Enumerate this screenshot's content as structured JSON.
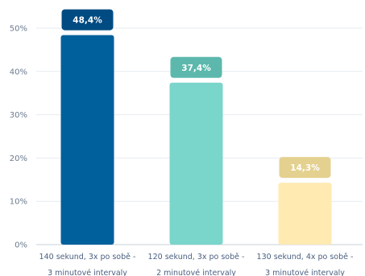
{
  "chart_data": {
    "type": "bar",
    "categories": [
      [
        "140 sekund, 3x po sobě -",
        "3 minutové intervaly"
      ],
      [
        "120 sekund, 3x po sobě -",
        "2 minutové intervaly"
      ],
      [
        "130 sekund, 4x po sobě -",
        "3 minutové intervaly"
      ]
    ],
    "values": [
      48.4,
      37.4,
      14.3
    ],
    "data_labels": [
      "48,4%",
      "37,4%",
      "14,3%"
    ],
    "yticks": [
      "0%",
      "10%",
      "20%",
      "30%",
      "40%",
      "50%"
    ],
    "ylim": [
      0,
      50
    ],
    "grid": true,
    "legend": "none",
    "colors": {
      "bars": [
        "#00609c",
        "#7ad5cb",
        "#ffeab2"
      ],
      "labels": [
        "#004b82",
        "#5cb8ad",
        "#e4d190"
      ],
      "grid": "#e6ebf0",
      "axis": "#c9d1da"
    }
  }
}
